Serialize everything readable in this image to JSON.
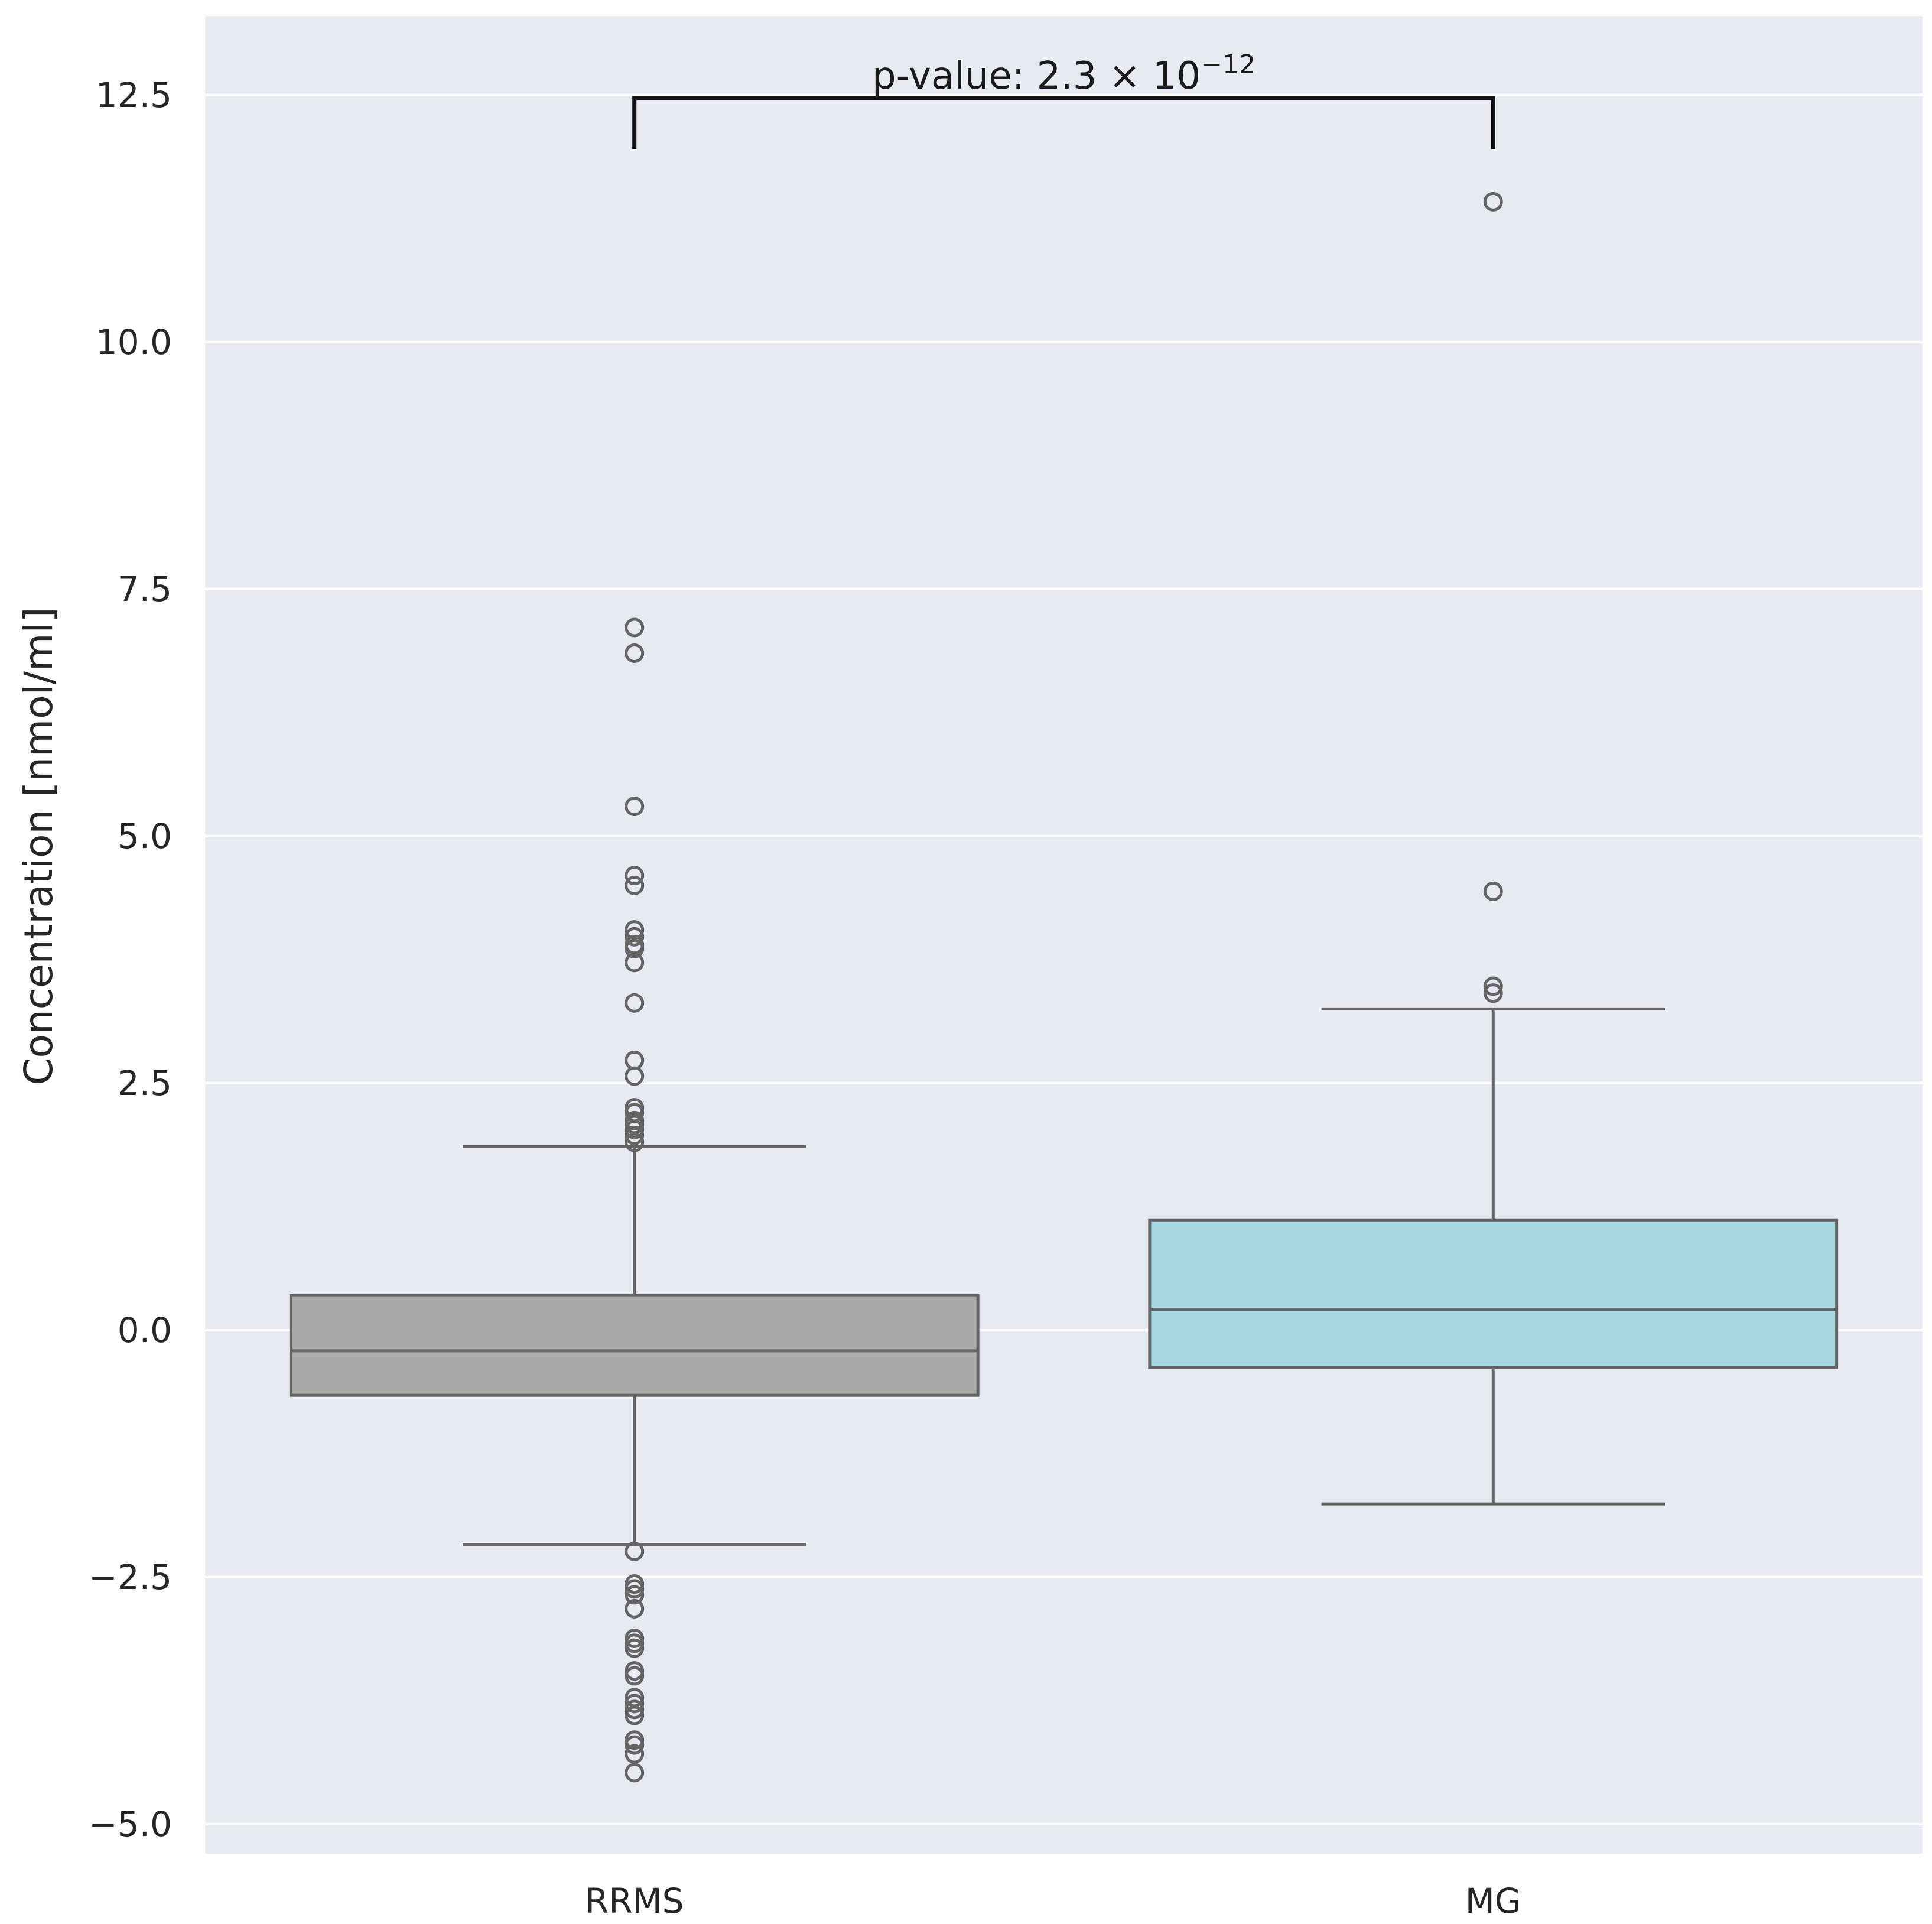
{
  "chart_data": {
    "type": "box",
    "title": "",
    "xlabel": "",
    "ylabel": "Concentration [nmol/ml]",
    "ylim": [
      -5.3,
      13.3
    ],
    "yticks": [
      -5.0,
      -2.5,
      0.0,
      2.5,
      5.0,
      7.5,
      10.0,
      12.5
    ],
    "ytick_labels": [
      "−5.0",
      "−2.5",
      "0.0",
      "2.5",
      "5.0",
      "7.5",
      "10.0",
      "12.5"
    ],
    "grid": true,
    "categories": [
      "RRMS",
      "MG"
    ],
    "groups": [
      {
        "name": "RRMS",
        "color": "#a9a9a9",
        "q1": -0.66,
        "median": -0.21,
        "q3": 0.35,
        "whisker_low": -2.17,
        "whisker_high": 1.86,
        "outliers": [
          7.11,
          6.85,
          5.3,
          4.6,
          4.5,
          4.05,
          3.98,
          3.9,
          3.86,
          3.72,
          3.31,
          2.73,
          2.57,
          2.25,
          2.2,
          2.12,
          2.08,
          2.03,
          1.97,
          1.9,
          -2.24,
          -2.57,
          -2.62,
          -2.68,
          -2.82,
          -3.12,
          -3.17,
          -3.22,
          -3.45,
          -3.5,
          -3.72,
          -3.78,
          -3.84,
          -3.9,
          -4.15,
          -4.2,
          -4.29,
          -4.48
        ]
      },
      {
        "name": "MG",
        "color": "#a6d6e0",
        "q1": -0.38,
        "median": 0.21,
        "q3": 1.11,
        "whisker_low": -1.76,
        "whisker_high": 3.25,
        "outliers": [
          11.42,
          4.44,
          3.48,
          3.41
        ]
      }
    ],
    "annotation": {
      "from": "RRMS",
      "to": "MG",
      "label_prefix": "p-value: 2.3 × 10",
      "label_exponent": "−12"
    },
    "colors": {
      "background": "#e8eaf1",
      "grid": "#ffffff",
      "line": "#646464",
      "bracket": "#111111"
    }
  }
}
